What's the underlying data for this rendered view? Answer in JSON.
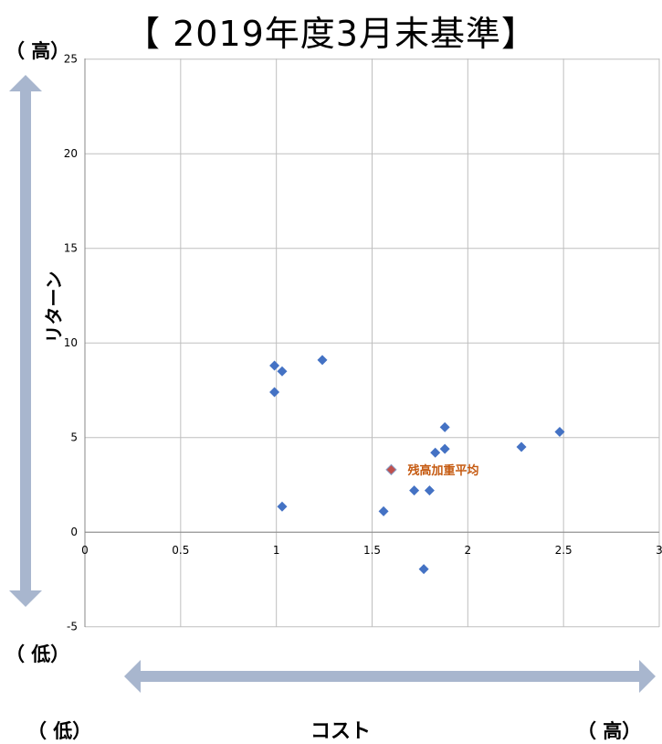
{
  "title": "【 2019年度3月末基準】",
  "y_high_label": "（ 高）",
  "y_low_label": "（ 低）",
  "x_low_label": "（ 低）",
  "x_high_label": "（ 高）",
  "x_axis_title": "コスト",
  "y_axis_title": "リターン",
  "colors": {
    "point": "#4472C4",
    "highlight_point": "#C0504D",
    "highlight_label": "#C55A11",
    "arrow": "#A8B6CE",
    "grid": "#BFBFBF"
  },
  "chart_data": {
    "type": "scatter",
    "xlim": [
      0,
      3
    ],
    "ylim": [
      -5,
      23
    ],
    "x_ticks": [
      "0",
      "0.5",
      "1",
      "1.5",
      "2",
      "2.5",
      "3"
    ],
    "y_ticks": [
      "-5",
      "0",
      "5",
      "10",
      "15",
      "20",
      "25"
    ],
    "grid": true,
    "points": [
      {
        "x": 0.99,
        "y": 8.8
      },
      {
        "x": 0.99,
        "y": 7.4
      },
      {
        "x": 1.03,
        "y": 8.5
      },
      {
        "x": 1.24,
        "y": 9.1
      },
      {
        "x": 1.03,
        "y": 1.35
      },
      {
        "x": 1.56,
        "y": 1.1
      },
      {
        "x": 1.72,
        "y": 2.2
      },
      {
        "x": 1.8,
        "y": 2.2
      },
      {
        "x": 1.77,
        "y": -1.95
      },
      {
        "x": 1.83,
        "y": 4.2
      },
      {
        "x": 1.88,
        "y": 4.4
      },
      {
        "x": 1.88,
        "y": 5.55
      },
      {
        "x": 2.28,
        "y": 4.5
      },
      {
        "x": 2.48,
        "y": 5.3
      }
    ],
    "highlight": {
      "x": 1.6,
      "y": 3.3,
      "label": "残高加重平均"
    }
  }
}
